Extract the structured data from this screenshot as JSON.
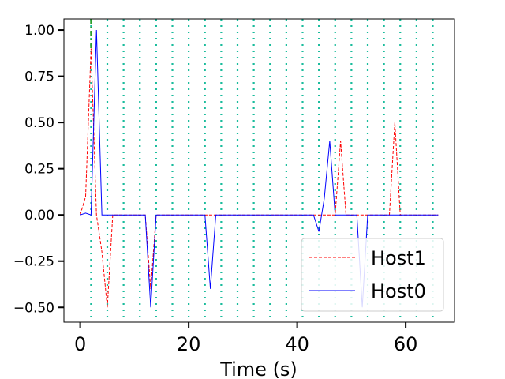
{
  "chart_data": {
    "type": "line",
    "xlabel": "Time (s)",
    "ylabel": "",
    "xlim": [
      -3,
      69
    ],
    "ylim": [
      -0.58,
      1.06
    ],
    "xticks": [
      0,
      20,
      40,
      60
    ],
    "yticks": [
      -0.5,
      -0.25,
      0.0,
      0.25,
      0.5,
      0.75,
      1.0
    ],
    "ytick_labels": [
      "−0.50",
      "−0.25",
      "0.00",
      "0.25",
      "0.50",
      "0.75",
      "1.00"
    ],
    "xtick_labels": [
      "0",
      "20",
      "40",
      "60"
    ],
    "grid": false,
    "legend_position": "lower-right",
    "series": [
      {
        "name": "Host1",
        "color": "#ff0000",
        "style": "dashed",
        "x": [
          0,
          1,
          2,
          3,
          4,
          5,
          6,
          7,
          8,
          9,
          10,
          11,
          12,
          13,
          14,
          15,
          16,
          17,
          18,
          19,
          20,
          21,
          22,
          23,
          24,
          25,
          26,
          27,
          28,
          29,
          30,
          31,
          32,
          33,
          34,
          35,
          36,
          37,
          38,
          39,
          40,
          41,
          42,
          43,
          44,
          45,
          46,
          47,
          48,
          49,
          50,
          51,
          52,
          53,
          54,
          55,
          56,
          57,
          58,
          59,
          60,
          61,
          62,
          63,
          64,
          65,
          66
        ],
        "y": [
          0,
          0.1,
          0.9,
          0,
          -0.2,
          -0.5,
          0,
          0,
          0,
          0,
          0,
          0,
          0,
          -0.4,
          0,
          0,
          0,
          0,
          0,
          0,
          0,
          0,
          0,
          0,
          0,
          0,
          0,
          0,
          0,
          0,
          0,
          0,
          0,
          0,
          0,
          0,
          0,
          0,
          0,
          0,
          0,
          0,
          0,
          0,
          0,
          0,
          0,
          0,
          0.4,
          0,
          0,
          0,
          0,
          0,
          0,
          0,
          0,
          0,
          0.5,
          0,
          0,
          0,
          0,
          0,
          0,
          0,
          0
        ]
      },
      {
        "name": "Host0",
        "color": "#0000ff",
        "style": "solid",
        "x": [
          0,
          1,
          2,
          3,
          4,
          5,
          6,
          7,
          8,
          9,
          10,
          11,
          12,
          13,
          14,
          15,
          16,
          17,
          18,
          19,
          20,
          21,
          22,
          23,
          24,
          25,
          26,
          27,
          28,
          29,
          30,
          31,
          32,
          33,
          34,
          35,
          36,
          37,
          38,
          39,
          40,
          41,
          42,
          43,
          44,
          45,
          46,
          47,
          48,
          49,
          50,
          51,
          52,
          53,
          54,
          55,
          56,
          57,
          58,
          59,
          60,
          61,
          62,
          63,
          64,
          65,
          66
        ],
        "y": [
          0,
          0.01,
          0,
          1.0,
          0,
          0,
          0,
          0,
          0,
          0,
          0,
          0,
          0,
          -0.5,
          0,
          0,
          0,
          0,
          0,
          0,
          0,
          0,
          0,
          0,
          -0.4,
          0,
          0,
          0,
          0,
          0,
          0,
          0,
          0,
          0,
          0,
          0,
          0,
          0,
          0,
          0,
          0,
          0,
          0,
          0,
          -0.09,
          0.09,
          0.4,
          0,
          0,
          0,
          0,
          0,
          -0.5,
          0,
          0,
          0,
          0,
          0,
          0,
          0,
          0,
          0,
          0,
          0,
          0,
          0,
          0
        ]
      }
    ],
    "vertical_markers": {
      "color": "#1abc9c",
      "style": "dotted",
      "x": [
        2,
        5,
        8,
        11,
        14,
        17,
        20,
        23,
        26,
        29,
        32,
        35,
        38,
        41,
        44,
        47,
        50,
        53,
        56,
        59,
        62,
        65
      ]
    },
    "marker_lines": [
      {
        "x": 2,
        "color": "#2ca02c",
        "style": "dashdot"
      }
    ]
  }
}
